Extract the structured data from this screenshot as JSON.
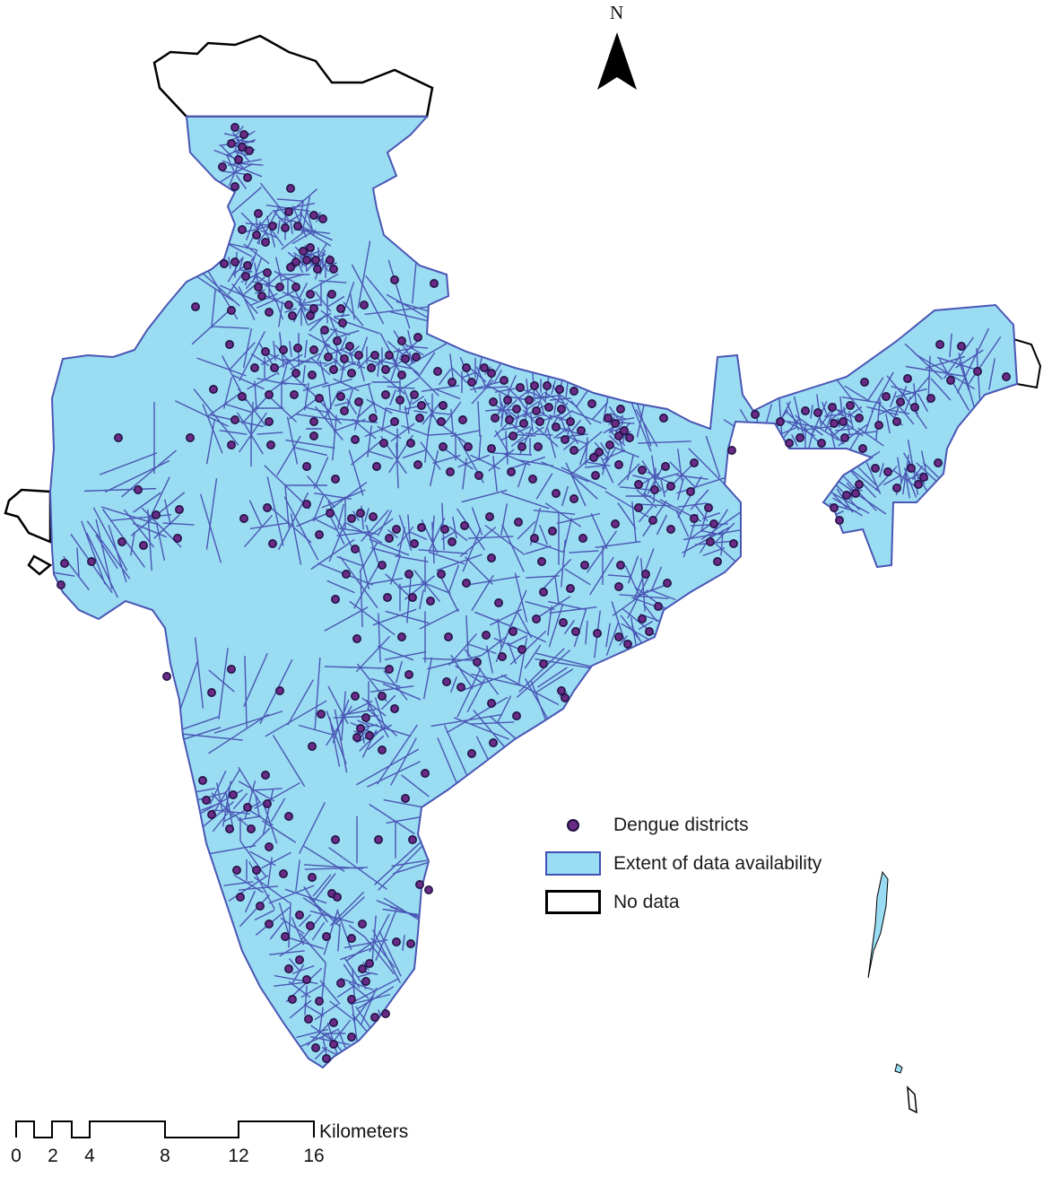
{
  "map": {
    "north_label": "N",
    "colors": {
      "data_extent": "#9adcf2",
      "boundary": "#4a56b4",
      "point_fill": "#6a2b86",
      "point_stroke": "#1c1140",
      "no_data_outline": "#000000"
    }
  },
  "legend": {
    "items": [
      {
        "label": "Dengue districts",
        "symbol": "point"
      },
      {
        "label": "Extent of data availability",
        "symbol": "polygon-fill"
      },
      {
        "label": "No data",
        "symbol": "polygon-outline"
      }
    ]
  },
  "scale_bar": {
    "unit": "Kilometers",
    "ticks": [
      "0",
      "2",
      "4",
      "8",
      "12",
      "16"
    ]
  }
}
